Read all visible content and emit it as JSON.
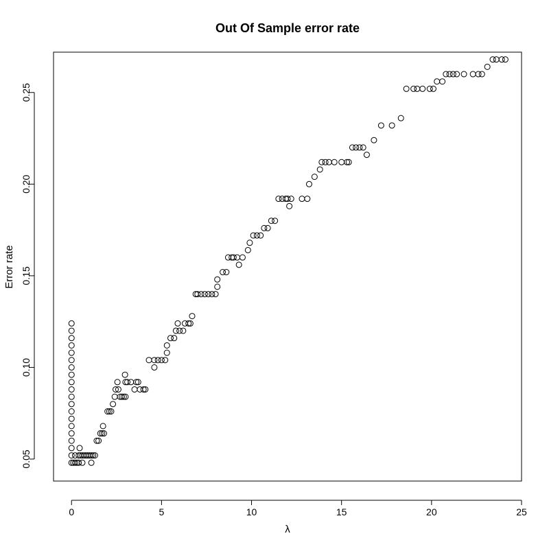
{
  "chart_data": {
    "type": "scatter",
    "title": "Out Of Sample error rate",
    "xlabel": "λ",
    "ylabel": "Error rate",
    "xlim": [
      -1,
      25
    ],
    "ylim": [
      0.038,
      0.272
    ],
    "xticks": [
      0,
      5,
      10,
      15,
      20,
      25
    ],
    "yticks": [
      0.05,
      0.1,
      0.15,
      0.2,
      0.25
    ],
    "xtick_labels": [
      "0",
      "5",
      "10",
      "15",
      "20",
      "25"
    ],
    "ytick_labels": [
      "0.05",
      "0.10",
      "0.15",
      "0.20",
      "0.25"
    ],
    "grid": false,
    "series": [
      {
        "marker": "open-circle",
        "points": [
          [
            0.0,
            0.048
          ],
          [
            0.0,
            0.052
          ],
          [
            0.0,
            0.056
          ],
          [
            0.0,
            0.06
          ],
          [
            0.0,
            0.064
          ],
          [
            0.0,
            0.068
          ],
          [
            0.0,
            0.072
          ],
          [
            0.0,
            0.076
          ],
          [
            0.0,
            0.08
          ],
          [
            0.0,
            0.084
          ],
          [
            0.0,
            0.088
          ],
          [
            0.0,
            0.092
          ],
          [
            0.0,
            0.096
          ],
          [
            0.0,
            0.1
          ],
          [
            0.0,
            0.104
          ],
          [
            0.0,
            0.108
          ],
          [
            0.0,
            0.112
          ],
          [
            0.0,
            0.116
          ],
          [
            0.0,
            0.12
          ],
          [
            0.0,
            0.124
          ],
          [
            0.1,
            0.048
          ],
          [
            0.2,
            0.048
          ],
          [
            0.3,
            0.048
          ],
          [
            0.4,
            0.048
          ],
          [
            0.6,
            0.048
          ],
          [
            1.1,
            0.048
          ],
          [
            0.2,
            0.052
          ],
          [
            0.4,
            0.052
          ],
          [
            0.5,
            0.052
          ],
          [
            0.6,
            0.052
          ],
          [
            0.7,
            0.052
          ],
          [
            0.8,
            0.052
          ],
          [
            0.9,
            0.052
          ],
          [
            1.0,
            0.052
          ],
          [
            1.1,
            0.052
          ],
          [
            1.2,
            0.052
          ],
          [
            1.3,
            0.052
          ],
          [
            0.45,
            0.056
          ],
          [
            1.4,
            0.06
          ],
          [
            1.5,
            0.06
          ],
          [
            1.6,
            0.064
          ],
          [
            1.7,
            0.064
          ],
          [
            1.8,
            0.064
          ],
          [
            1.75,
            0.068
          ],
          [
            2.0,
            0.076
          ],
          [
            2.1,
            0.076
          ],
          [
            2.2,
            0.076
          ],
          [
            2.3,
            0.08
          ],
          [
            2.4,
            0.084
          ],
          [
            2.45,
            0.088
          ],
          [
            2.6,
            0.088
          ],
          [
            2.55,
            0.092
          ],
          [
            2.7,
            0.084
          ],
          [
            2.8,
            0.084
          ],
          [
            2.9,
            0.084
          ],
          [
            3.0,
            0.084
          ],
          [
            3.0,
            0.092
          ],
          [
            3.1,
            0.092
          ],
          [
            3.3,
            0.092
          ],
          [
            2.97,
            0.096
          ],
          [
            3.5,
            0.088
          ],
          [
            3.6,
            0.092
          ],
          [
            3.7,
            0.092
          ],
          [
            3.8,
            0.088
          ],
          [
            4.0,
            0.088
          ],
          [
            4.1,
            0.088
          ],
          [
            4.3,
            0.104
          ],
          [
            4.6,
            0.1
          ],
          [
            4.6,
            0.104
          ],
          [
            4.8,
            0.104
          ],
          [
            5.0,
            0.104
          ],
          [
            5.2,
            0.104
          ],
          [
            5.3,
            0.108
          ],
          [
            5.3,
            0.112
          ],
          [
            5.5,
            0.116
          ],
          [
            5.7,
            0.116
          ],
          [
            5.8,
            0.12
          ],
          [
            5.9,
            0.124
          ],
          [
            6.0,
            0.12
          ],
          [
            6.2,
            0.12
          ],
          [
            6.3,
            0.124
          ],
          [
            6.5,
            0.124
          ],
          [
            6.6,
            0.124
          ],
          [
            6.7,
            0.128
          ],
          [
            6.9,
            0.14
          ],
          [
            7.0,
            0.14
          ],
          [
            7.2,
            0.14
          ],
          [
            7.4,
            0.14
          ],
          [
            7.6,
            0.14
          ],
          [
            7.8,
            0.14
          ],
          [
            8.0,
            0.14
          ],
          [
            8.1,
            0.144
          ],
          [
            8.1,
            0.148
          ],
          [
            8.4,
            0.152
          ],
          [
            8.6,
            0.152
          ],
          [
            8.7,
            0.16
          ],
          [
            8.9,
            0.16
          ],
          [
            9.0,
            0.16
          ],
          [
            9.2,
            0.16
          ],
          [
            9.3,
            0.156
          ],
          [
            9.5,
            0.16
          ],
          [
            9.8,
            0.164
          ],
          [
            9.9,
            0.168
          ],
          [
            10.1,
            0.172
          ],
          [
            10.3,
            0.172
          ],
          [
            10.5,
            0.172
          ],
          [
            10.7,
            0.176
          ],
          [
            10.9,
            0.176
          ],
          [
            11.1,
            0.18
          ],
          [
            11.3,
            0.18
          ],
          [
            11.5,
            0.192
          ],
          [
            11.7,
            0.192
          ],
          [
            11.9,
            0.192
          ],
          [
            12.0,
            0.192
          ],
          [
            12.1,
            0.188
          ],
          [
            12.2,
            0.192
          ],
          [
            12.8,
            0.192
          ],
          [
            13.1,
            0.192
          ],
          [
            13.2,
            0.2
          ],
          [
            13.5,
            0.204
          ],
          [
            13.8,
            0.208
          ],
          [
            13.9,
            0.212
          ],
          [
            14.1,
            0.212
          ],
          [
            14.3,
            0.212
          ],
          [
            14.6,
            0.212
          ],
          [
            15.0,
            0.212
          ],
          [
            15.3,
            0.212
          ],
          [
            15.4,
            0.212
          ],
          [
            15.6,
            0.22
          ],
          [
            15.8,
            0.22
          ],
          [
            16.0,
            0.22
          ],
          [
            16.2,
            0.22
          ],
          [
            16.4,
            0.216
          ],
          [
            16.8,
            0.224
          ],
          [
            17.2,
            0.232
          ],
          [
            17.8,
            0.232
          ],
          [
            18.3,
            0.236
          ],
          [
            18.6,
            0.252
          ],
          [
            19.0,
            0.252
          ],
          [
            19.2,
            0.252
          ],
          [
            19.5,
            0.252
          ],
          [
            19.9,
            0.252
          ],
          [
            20.1,
            0.252
          ],
          [
            20.3,
            0.256
          ],
          [
            20.6,
            0.256
          ],
          [
            20.8,
            0.26
          ],
          [
            21.0,
            0.26
          ],
          [
            21.2,
            0.26
          ],
          [
            21.4,
            0.26
          ],
          [
            21.8,
            0.26
          ],
          [
            22.3,
            0.26
          ],
          [
            22.6,
            0.26
          ],
          [
            22.8,
            0.26
          ],
          [
            23.1,
            0.264
          ],
          [
            23.4,
            0.268
          ],
          [
            23.6,
            0.268
          ],
          [
            23.9,
            0.268
          ],
          [
            24.1,
            0.268
          ]
        ]
      }
    ]
  }
}
